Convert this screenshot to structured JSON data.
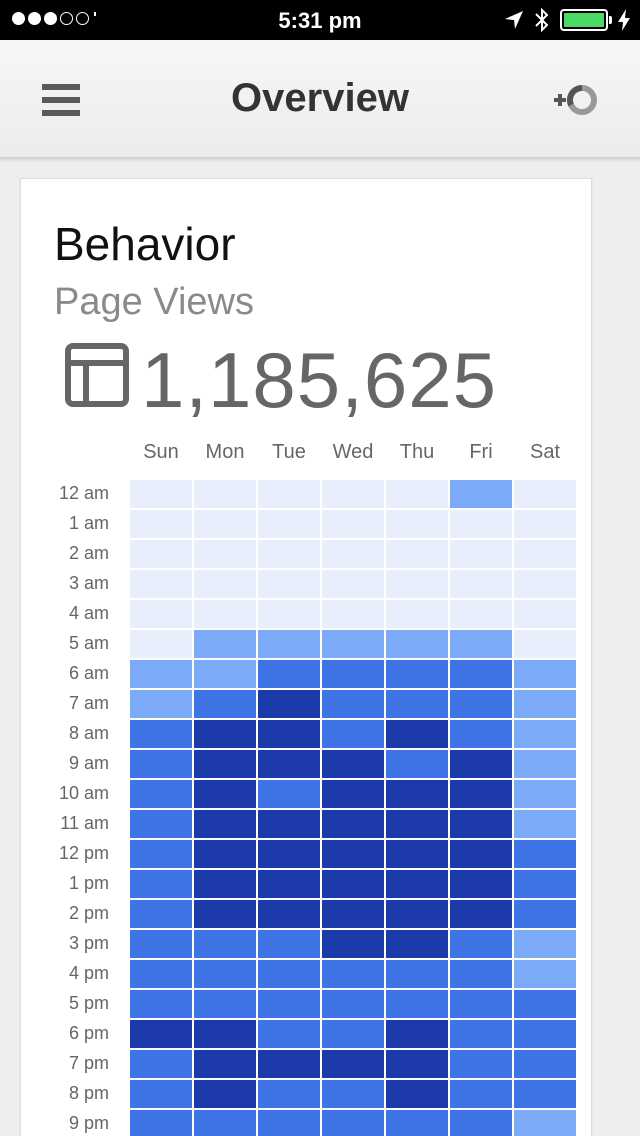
{
  "status_bar": {
    "time": "5:31 pm",
    "signal_filled": 3,
    "signal_total": 5
  },
  "app_bar": {
    "title": "Overview",
    "menu_icon": "hamburger-menu-icon",
    "add_segment_icon": "add-segment-icon"
  },
  "card": {
    "title": "Behavior",
    "metric_name": "Page Views",
    "metric_value": "1,185,625",
    "metric_icon": "table-view-icon"
  },
  "colors": {
    "level_0": "#e8eefc",
    "level_1": "#7baaf7",
    "level_2": "#4285f4",
    "level_3": "#3f74e6",
    "level_4": "#1c3aa9",
    "battery": "#4cd964"
  },
  "heatmap": {
    "days": [
      "Sun",
      "Mon",
      "Tue",
      "Wed",
      "Thu",
      "Fri",
      "Sat"
    ],
    "hours": [
      "12 am",
      "1 am",
      "2 am",
      "3 am",
      "4 am",
      "5 am",
      "6 am",
      "7 am",
      "8 am",
      "9 am",
      "10 am",
      "11 am",
      "12 pm",
      "1 pm",
      "2 pm",
      "3 pm",
      "4 pm",
      "5 pm",
      "6 pm",
      "7 pm",
      "8 pm",
      "9 pm"
    ],
    "levels": [
      [
        0,
        0,
        0,
        0,
        0,
        1,
        0
      ],
      [
        0,
        0,
        0,
        0,
        0,
        0,
        0
      ],
      [
        0,
        0,
        0,
        0,
        0,
        0,
        0
      ],
      [
        0,
        0,
        0,
        0,
        0,
        0,
        0
      ],
      [
        0,
        0,
        0,
        0,
        0,
        0,
        0
      ],
      [
        0,
        1,
        1,
        1,
        1,
        1,
        0
      ],
      [
        1,
        1,
        3,
        3,
        3,
        3,
        1
      ],
      [
        1,
        3,
        4,
        3,
        3,
        3,
        1
      ],
      [
        3,
        4,
        4,
        3,
        4,
        3,
        1
      ],
      [
        3,
        4,
        4,
        4,
        3,
        4,
        1
      ],
      [
        3,
        4,
        3,
        4,
        4,
        4,
        1
      ],
      [
        3,
        4,
        4,
        4,
        4,
        4,
        1
      ],
      [
        3,
        4,
        4,
        4,
        4,
        4,
        3
      ],
      [
        3,
        4,
        4,
        4,
        4,
        4,
        3
      ],
      [
        3,
        4,
        4,
        4,
        4,
        4,
        3
      ],
      [
        3,
        3,
        3,
        4,
        4,
        3,
        1
      ],
      [
        3,
        3,
        3,
        3,
        3,
        3,
        1
      ],
      [
        3,
        3,
        3,
        3,
        3,
        3,
        3
      ],
      [
        4,
        4,
        3,
        3,
        4,
        3,
        3
      ],
      [
        3,
        4,
        4,
        4,
        4,
        3,
        3
      ],
      [
        3,
        4,
        3,
        3,
        4,
        3,
        3
      ],
      [
        3,
        3,
        3,
        3,
        3,
        3,
        1
      ]
    ]
  }
}
